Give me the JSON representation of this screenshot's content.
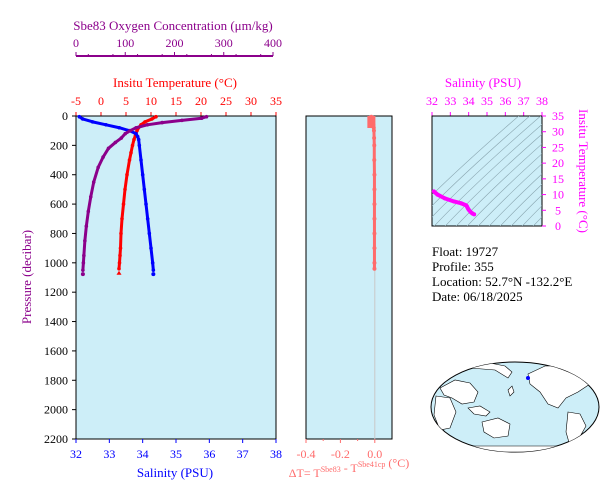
{
  "colors": {
    "panel_bg": "#cdeef8",
    "oxygen": "#8b008b",
    "temperature": "#ff0000",
    "salinity": "#0000ff",
    "delta_t": "#ff6b6b",
    "ts_curve": "#ff00ff",
    "land": "#ffffff",
    "ocean": "#cdeef8",
    "float_marker": "#0000ff"
  },
  "chart_data": [
    {
      "type": "scatter",
      "panel": "main-profile",
      "ylabel": "Pressure (decibar)",
      "ylim": [
        2200,
        0
      ],
      "yticks": [
        0,
        200,
        400,
        600,
        800,
        1000,
        1200,
        1400,
        1600,
        1800,
        2000,
        2200
      ],
      "axes": {
        "salinity": {
          "label": "Salinity (PSU)",
          "range": [
            32,
            38
          ],
          "ticks": [
            32,
            33,
            34,
            35,
            36,
            37,
            38
          ],
          "position": "bottom"
        },
        "temperature": {
          "label": "Insitu Temperature (°C)",
          "range": [
            -5,
            35
          ],
          "ticks": [
            -5,
            0,
            5,
            10,
            15,
            20,
            25,
            30,
            35
          ],
          "position": "top"
        },
        "oxygen": {
          "label": "Sbe83 Oxygen Concentration (μm/kg)",
          "range": [
            0,
            400
          ],
          "ticks": [
            0,
            100,
            200,
            300,
            400
          ],
          "position": "top-outer"
        }
      },
      "grid": false,
      "series": [
        {
          "axis": "temperature",
          "p": [
            5,
            20,
            40,
            60,
            80,
            100,
            130,
            160,
            200,
            250,
            300,
            400,
            500,
            600,
            700,
            800,
            900,
            950,
            1000,
            1040
          ],
          "values": [
            11.0,
            10.2,
            8.8,
            8.0,
            7.5,
            7.2,
            6.9,
            6.6,
            6.3,
            6.0,
            5.7,
            5.2,
            4.8,
            4.5,
            4.2,
            4.0,
            3.9,
            3.8,
            3.7,
            3.6
          ]
        },
        {
          "axis": "salinity",
          "p": [
            5,
            20,
            40,
            60,
            80,
            100,
            120,
            140,
            160,
            200,
            300,
            400,
            500,
            600,
            700,
            800,
            900,
            1000,
            1050
          ],
          "values": [
            32.1,
            32.2,
            32.5,
            32.9,
            33.3,
            33.6,
            33.8,
            33.85,
            33.88,
            33.9,
            33.95,
            34.0,
            34.05,
            34.1,
            34.15,
            34.2,
            34.25,
            34.3,
            34.32
          ]
        },
        {
          "axis": "oxygen",
          "p": [
            5,
            15,
            30,
            45,
            60,
            80,
            100,
            120,
            150,
            180,
            220,
            280,
            350,
            450,
            550,
            650,
            750,
            850,
            950,
            1000,
            1050
          ],
          "values": [
            265,
            255,
            215,
            175,
            145,
            122,
            110,
            100,
            92,
            80,
            66,
            55,
            45,
            36,
            30,
            25,
            21,
            18,
            16,
            15,
            14
          ]
        }
      ]
    },
    {
      "type": "scatter",
      "panel": "delta-t",
      "xlabel": "ΔT= T^Sbe83 - T^Sbe41cp (°C)",
      "xlim": [
        -0.4,
        0.1
      ],
      "xticks": [
        -0.4,
        -0.2,
        0.0
      ],
      "xtick_labels": [
        "-0.4",
        "-0.2",
        "0.0"
      ],
      "ylim": [
        2200,
        0
      ],
      "series": [
        {
          "p": [
            5,
            10,
            20,
            40,
            60,
            80,
            100,
            150,
            200,
            300,
            400,
            500,
            600,
            700,
            800,
            900,
            1000,
            1040
          ],
          "values": [
            -0.02,
            -0.015,
            -0.012,
            -0.01,
            -0.008,
            -0.006,
            -0.005,
            -0.004,
            -0.003,
            -0.003,
            -0.002,
            -0.002,
            -0.002,
            -0.002,
            -0.002,
            -0.002,
            -0.002,
            -0.002
          ]
        }
      ]
    },
    {
      "type": "line",
      "panel": "ts-diagram",
      "xlabel": "Salinity (PSU)",
      "ylabel": "Insitu Temperature (°C)",
      "xlim": [
        32,
        38
      ],
      "ylim": [
        0,
        35
      ],
      "xticks": [
        32,
        33,
        34,
        35,
        36,
        37,
        38
      ],
      "yticks": [
        0,
        5,
        10,
        15,
        20,
        25,
        30,
        35
      ],
      "series": [
        {
          "x": [
            32.1,
            32.3,
            32.7,
            33.2,
            33.6,
            33.85,
            33.9,
            33.95,
            34.0,
            34.1,
            34.2,
            34.3
          ],
          "y": [
            11.0,
            10.0,
            8.8,
            7.8,
            7.2,
            6.6,
            6.3,
            5.7,
            5.2,
            4.5,
            4.0,
            3.7
          ]
        }
      ]
    }
  ],
  "float_info": {
    "float": "Float:  19727",
    "profile": "Profile:  355",
    "location": "Location:  52.7°N  -132.2°E",
    "date": "Date:  06/18/2025"
  }
}
